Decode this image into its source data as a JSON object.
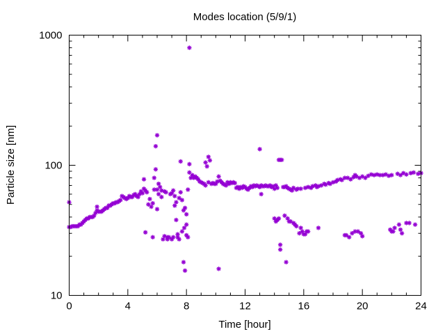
{
  "chart_data": {
    "type": "scatter",
    "title": "Modes location (5/9/1)",
    "xlabel": "Time [hour]",
    "ylabel": "Particle size [nm]",
    "xlim": [
      0,
      24
    ],
    "ylim": [
      10,
      1000
    ],
    "yscale": "log",
    "grid": false,
    "legend": "none",
    "marker_color": "#9400d3",
    "marker": "asterisk",
    "x_ticks": [
      {
        "value": 0,
        "label": "0"
      },
      {
        "value": 4,
        "label": "4"
      },
      {
        "value": 8,
        "label": "8"
      },
      {
        "value": 12,
        "label": "12"
      },
      {
        "value": 16,
        "label": "16"
      },
      {
        "value": 20,
        "label": "20"
      },
      {
        "value": 24,
        "label": "24"
      }
    ],
    "y_ticks": [
      {
        "value": 10,
        "label": "10"
      },
      {
        "value": 100,
        "label": "100"
      },
      {
        "value": 1000,
        "label": "1000"
      }
    ],
    "points": [
      [
        0.0,
        52
      ],
      [
        0.0,
        33.5
      ],
      [
        0.1,
        33.5
      ],
      [
        0.2,
        34
      ],
      [
        0.3,
        34
      ],
      [
        0.4,
        34
      ],
      [
        0.5,
        34
      ],
      [
        0.6,
        34
      ],
      [
        0.7,
        35
      ],
      [
        0.8,
        35
      ],
      [
        0.9,
        36
      ],
      [
        1.0,
        37
      ],
      [
        1.1,
        38
      ],
      [
        1.2,
        39
      ],
      [
        1.3,
        39
      ],
      [
        1.4,
        40
      ],
      [
        1.5,
        40
      ],
      [
        1.6,
        40
      ],
      [
        1.7,
        41
      ],
      [
        1.8,
        43
      ],
      [
        1.9,
        45
      ],
      [
        1.9,
        48
      ],
      [
        2.0,
        44
      ],
      [
        2.1,
        44
      ],
      [
        2.2,
        44
      ],
      [
        2.3,
        45
      ],
      [
        2.4,
        46
      ],
      [
        2.5,
        47
      ],
      [
        2.6,
        47
      ],
      [
        2.7,
        49
      ],
      [
        2.8,
        49
      ],
      [
        2.9,
        50
      ],
      [
        3.0,
        51
      ],
      [
        3.1,
        51
      ],
      [
        3.2,
        52
      ],
      [
        3.3,
        52
      ],
      [
        3.4,
        53
      ],
      [
        3.5,
        54
      ],
      [
        3.6,
        58
      ],
      [
        3.7,
        57
      ],
      [
        3.8,
        56
      ],
      [
        3.9,
        55
      ],
      [
        4.0,
        56
      ],
      [
        4.1,
        58
      ],
      [
        4.2,
        57
      ],
      [
        4.3,
        57
      ],
      [
        4.4,
        59
      ],
      [
        4.5,
        60
      ],
      [
        4.6,
        58
      ],
      [
        4.7,
        57
      ],
      [
        4.8,
        60
      ],
      [
        4.9,
        63
      ],
      [
        5.0,
        61
      ],
      [
        5.1,
        66
      ],
      [
        5.2,
        64
      ],
      [
        5.3,
        62
      ],
      [
        5.1,
        78
      ],
      [
        5.2,
        30.5
      ],
      [
        5.4,
        50
      ],
      [
        5.5,
        55
      ],
      [
        5.6,
        48
      ],
      [
        5.7,
        51
      ],
      [
        5.7,
        28
      ],
      [
        5.8,
        65
      ],
      [
        5.8,
        80
      ],
      [
        5.9,
        93
      ],
      [
        5.9,
        140
      ],
      [
        6.0,
        170
      ],
      [
        6.0,
        65
      ],
      [
        6.0,
        46
      ],
      [
        6.1,
        72
      ],
      [
        6.1,
        60
      ],
      [
        6.2,
        68
      ],
      [
        6.3,
        64
      ],
      [
        6.3,
        57
      ],
      [
        6.4,
        27
      ],
      [
        6.5,
        63
      ],
      [
        6.5,
        28.5
      ],
      [
        6.6,
        62
      ],
      [
        6.7,
        28
      ],
      [
        6.7,
        27
      ],
      [
        6.8,
        28
      ],
      [
        6.9,
        60
      ],
      [
        7.0,
        61
      ],
      [
        7.0,
        27
      ],
      [
        7.1,
        64
      ],
      [
        7.1,
        28
      ],
      [
        7.2,
        58
      ],
      [
        7.2,
        49
      ],
      [
        7.3,
        38
      ],
      [
        7.3,
        52
      ],
      [
        7.4,
        28
      ],
      [
        7.4,
        29.5
      ],
      [
        7.5,
        27
      ],
      [
        7.5,
        56
      ],
      [
        7.6,
        107
      ],
      [
        7.6,
        62
      ],
      [
        7.7,
        54
      ],
      [
        7.7,
        31
      ],
      [
        7.8,
        45
      ],
      [
        7.8,
        18
      ],
      [
        7.85,
        33
      ],
      [
        7.9,
        15.5
      ],
      [
        7.9,
        47
      ],
      [
        8.0,
        42
      ],
      [
        8.0,
        35
      ],
      [
        8.0,
        29
      ],
      [
        8.1,
        28
      ],
      [
        8.1,
        65
      ],
      [
        8.2,
        800
      ],
      [
        8.2,
        102
      ],
      [
        8.2,
        88
      ],
      [
        8.3,
        80
      ],
      [
        8.4,
        84
      ],
      [
        8.5,
        80
      ],
      [
        8.6,
        82
      ],
      [
        8.7,
        80
      ],
      [
        8.8,
        78
      ],
      [
        8.9,
        75
      ],
      [
        9.0,
        74
      ],
      [
        9.1,
        73
      ],
      [
        9.2,
        72
      ],
      [
        9.3,
        70
      ],
      [
        9.3,
        105
      ],
      [
        9.4,
        98
      ],
      [
        9.5,
        116
      ],
      [
        9.5,
        74
      ],
      [
        9.6,
        109
      ],
      [
        9.7,
        72
      ],
      [
        9.8,
        73
      ],
      [
        9.9,
        72
      ],
      [
        10.0,
        72
      ],
      [
        10.1,
        75
      ],
      [
        10.2,
        16
      ],
      [
        10.2,
        82
      ],
      [
        10.3,
        76
      ],
      [
        10.4,
        74
      ],
      [
        10.5,
        72
      ],
      [
        10.6,
        71
      ],
      [
        10.7,
        70
      ],
      [
        10.8,
        74
      ],
      [
        10.9,
        72
      ],
      [
        11.0,
        74
      ],
      [
        11.1,
        73
      ],
      [
        11.2,
        74
      ],
      [
        11.3,
        73
      ],
      [
        11.4,
        67
      ],
      [
        11.5,
        68
      ],
      [
        11.6,
        66
      ],
      [
        11.7,
        68
      ],
      [
        11.8,
        67
      ],
      [
        11.9,
        69
      ],
      [
        12.0,
        68
      ],
      [
        12.1,
        66
      ],
      [
        12.2,
        65
      ],
      [
        12.3,
        67
      ],
      [
        12.4,
        69
      ],
      [
        12.5,
        68
      ],
      [
        12.6,
        70
      ],
      [
        12.7,
        69
      ],
      [
        12.8,
        70
      ],
      [
        12.9,
        69
      ],
      [
        13.0,
        68
      ],
      [
        13.0,
        133
      ],
      [
        13.1,
        70
      ],
      [
        13.1,
        60
      ],
      [
        13.2,
        69
      ],
      [
        13.3,
        69
      ],
      [
        13.4,
        70
      ],
      [
        13.5,
        69
      ],
      [
        13.6,
        69
      ],
      [
        13.7,
        70
      ],
      [
        13.8,
        68
      ],
      [
        13.9,
        69
      ],
      [
        14.0,
        66
      ],
      [
        14.0,
        39
      ],
      [
        14.1,
        70
      ],
      [
        14.1,
        37
      ],
      [
        14.2,
        67
      ],
      [
        14.2,
        38
      ],
      [
        14.3,
        110
      ],
      [
        14.3,
        39
      ],
      [
        14.4,
        110
      ],
      [
        14.4,
        22.5
      ],
      [
        14.4,
        24.5
      ],
      [
        14.5,
        110
      ],
      [
        14.6,
        68
      ],
      [
        14.7,
        41
      ],
      [
        14.7,
        68
      ],
      [
        14.8,
        18
      ],
      [
        14.8,
        69
      ],
      [
        14.9,
        67
      ],
      [
        14.9,
        39
      ],
      [
        15.0,
        66
      ],
      [
        15.0,
        37
      ],
      [
        15.1,
        65
      ],
      [
        15.1,
        37
      ],
      [
        15.2,
        64
      ],
      [
        15.3,
        36
      ],
      [
        15.3,
        67
      ],
      [
        15.4,
        35
      ],
      [
        15.5,
        34
      ],
      [
        15.5,
        65
      ],
      [
        15.6,
        66
      ],
      [
        15.7,
        30
      ],
      [
        15.8,
        33
      ],
      [
        15.8,
        66
      ],
      [
        15.9,
        31
      ],
      [
        16.0,
        29.5
      ],
      [
        16.1,
        29.5
      ],
      [
        16.1,
        67
      ],
      [
        16.2,
        31
      ],
      [
        16.3,
        31
      ],
      [
        16.3,
        68
      ],
      [
        16.5,
        67
      ],
      [
        16.6,
        69
      ],
      [
        16.8,
        70
      ],
      [
        16.9,
        68
      ],
      [
        17.0,
        33
      ],
      [
        17.0,
        69
      ],
      [
        17.2,
        70
      ],
      [
        17.4,
        72
      ],
      [
        17.5,
        71
      ],
      [
        17.7,
        73
      ],
      [
        17.8,
        72
      ],
      [
        18.0,
        74
      ],
      [
        18.2,
        75
      ],
      [
        18.3,
        77
      ],
      [
        18.5,
        78
      ],
      [
        18.6,
        77
      ],
      [
        18.8,
        80
      ],
      [
        18.8,
        29
      ],
      [
        18.9,
        29
      ],
      [
        19.0,
        80
      ],
      [
        19.1,
        28
      ],
      [
        19.2,
        78
      ],
      [
        19.3,
        30
      ],
      [
        19.4,
        81
      ],
      [
        19.5,
        31
      ],
      [
        19.5,
        84
      ],
      [
        19.6,
        82
      ],
      [
        19.7,
        31
      ],
      [
        19.8,
        80
      ],
      [
        19.9,
        30
      ],
      [
        20.0,
        28.5
      ],
      [
        20.0,
        82
      ],
      [
        20.2,
        80
      ],
      [
        20.4,
        83
      ],
      [
        20.6,
        85
      ],
      [
        20.8,
        84
      ],
      [
        21.0,
        85
      ],
      [
        21.2,
        84
      ],
      [
        21.4,
        84
      ],
      [
        21.6,
        85
      ],
      [
        21.8,
        83
      ],
      [
        21.9,
        32
      ],
      [
        22.0,
        84
      ],
      [
        22.0,
        31
      ],
      [
        22.1,
        31
      ],
      [
        22.2,
        33
      ],
      [
        22.4,
        86
      ],
      [
        22.5,
        35
      ],
      [
        22.6,
        32
      ],
      [
        22.6,
        84
      ],
      [
        22.7,
        30
      ],
      [
        22.8,
        87
      ],
      [
        23.0,
        36
      ],
      [
        23.0,
        85
      ],
      [
        23.2,
        36
      ],
      [
        23.3,
        87
      ],
      [
        23.5,
        88
      ],
      [
        23.6,
        35
      ],
      [
        23.8,
        86
      ],
      [
        24.0,
        87
      ]
    ]
  }
}
